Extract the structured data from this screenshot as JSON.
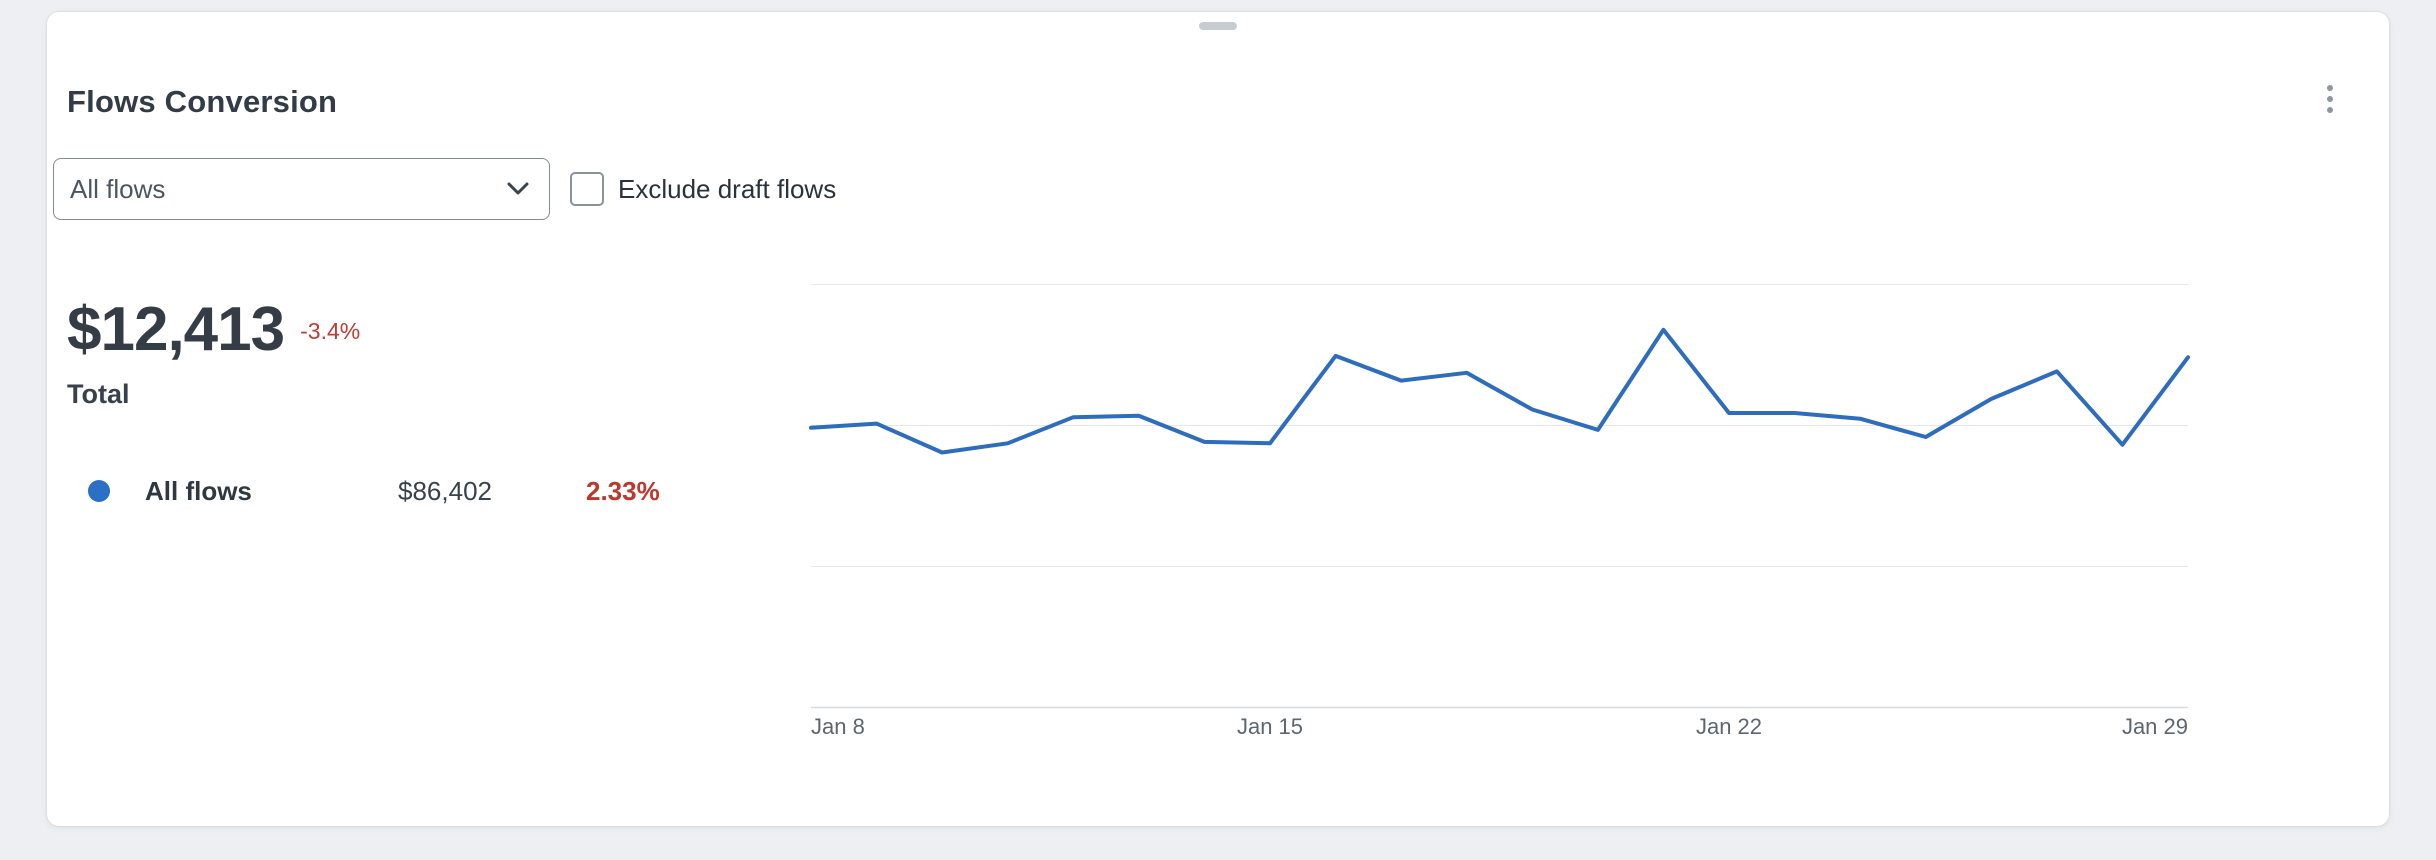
{
  "card": {
    "title": "Flows Conversion"
  },
  "controls": {
    "flow_select": {
      "value": "All flows"
    },
    "exclude_draft": {
      "label": "Exclude draft flows",
      "checked": false
    }
  },
  "summary": {
    "total": {
      "value": "$12,413",
      "delta": "-3.4%",
      "label": "Total"
    },
    "legend": [
      {
        "name": "All flows",
        "value": "$86,402",
        "delta": "2.33%",
        "color": "#2b70c6"
      }
    ]
  },
  "colors": {
    "line_blue": "#2e6cbe",
    "negative_red": "#c23b31",
    "card_background": "#ffffff",
    "page_background": "#edeff2"
  },
  "chart_data": {
    "type": "line",
    "title": "",
    "xlabel": "",
    "ylabel": "",
    "ylim": [
      0,
      6000
    ],
    "gridlines_y": [
      0,
      2000,
      4000,
      6000
    ],
    "grid": "horizontal",
    "legend_position": "left-panel",
    "x_tick_labels": [
      "Jan 8",
      "Jan 15",
      "Jan 22",
      "Jan 29"
    ],
    "categories": [
      "Jan 8",
      "Jan 9",
      "Jan 10",
      "Jan 11",
      "Jan 12",
      "Jan 13",
      "Jan 14",
      "Jan 15",
      "Jan 16",
      "Jan 17",
      "Jan 18",
      "Jan 19",
      "Jan 20",
      "Jan 21",
      "Jan 22",
      "Jan 23",
      "Jan 24",
      "Jan 25",
      "Jan 26",
      "Jan 27",
      "Jan 28",
      "Jan 29"
    ],
    "series": [
      {
        "name": "All flows",
        "color": "#2e6cbe",
        "values": [
          3960,
          4020,
          3610,
          3740,
          4110,
          4130,
          3760,
          3740,
          4980,
          4630,
          4740,
          4220,
          3930,
          5350,
          4170,
          4170,
          4090,
          3830,
          4370,
          4760,
          3720,
          4960
        ]
      }
    ]
  }
}
